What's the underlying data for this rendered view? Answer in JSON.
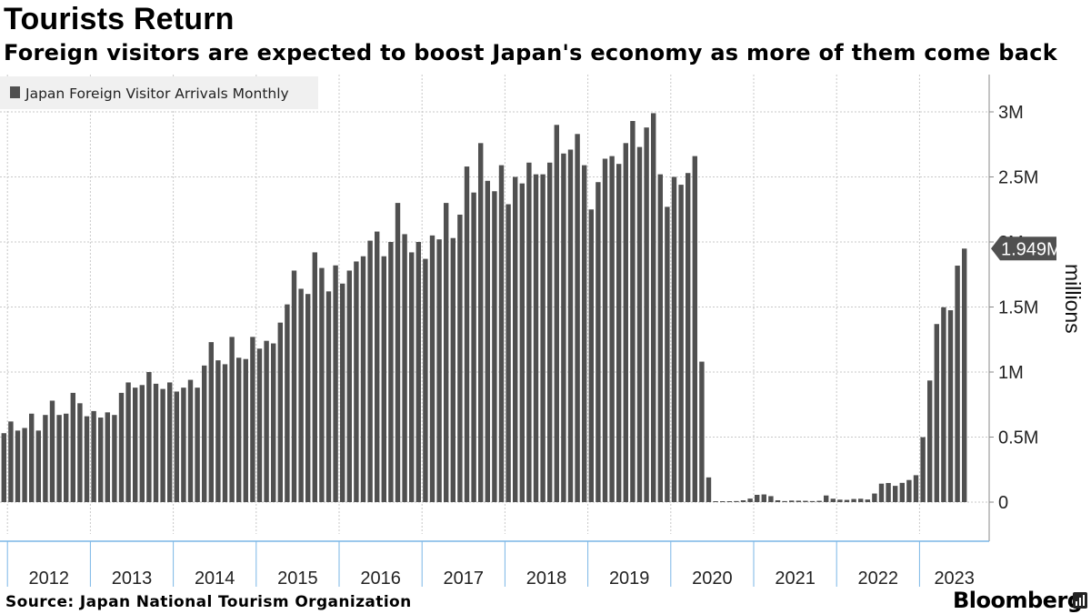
{
  "title": "Tourists Return",
  "subtitle": "Foreign visitors are expected to boost Japan's economy as more of them come back",
  "source": "Source: Japan National Tourism Organization",
  "brand": "Bloomberg",
  "brand_icon": "bloomberg-terminal-icon",
  "colors": {
    "bar": "#505050",
    "grid": "#c8c8c8",
    "axis_x": "#7ab6e6",
    "label_bg": "#505050",
    "legend_bg": "#f0f0f0"
  },
  "chart_data": {
    "type": "bar",
    "title": "Tourists Return",
    "series": [
      {
        "name": "Japan Foreign Visitor Arrivals Monthly",
        "unit": "millions"
      }
    ],
    "ylabel": "millions",
    "ylim": [
      -0.28,
      3.3
    ],
    "yticks": [
      {
        "value": 0,
        "label": "0"
      },
      {
        "value": 0.5,
        "label": "0.5M"
      },
      {
        "value": 1,
        "label": "1M"
      },
      {
        "value": 1.5,
        "label": "1.5M"
      },
      {
        "value": 2,
        "label": "2M"
      },
      {
        "value": 2.5,
        "label": "2.5M"
      },
      {
        "value": 3,
        "label": "3M"
      }
    ],
    "years": [
      "2012",
      "2013",
      "2014",
      "2015",
      "2016",
      "2017",
      "2018",
      "2019",
      "2020",
      "2021",
      "2022",
      "2023"
    ],
    "start": "2011-12",
    "values": [
      0.53,
      0.62,
      0.55,
      0.57,
      0.68,
      0.55,
      0.67,
      0.78,
      0.67,
      0.68,
      0.84,
      0.76,
      0.66,
      0.7,
      0.65,
      0.69,
      0.67,
      0.84,
      0.92,
      0.88,
      0.9,
      1.0,
      0.91,
      0.87,
      0.92,
      0.85,
      0.88,
      0.94,
      0.88,
      1.05,
      1.23,
      1.09,
      1.06,
      1.27,
      1.11,
      1.1,
      1.27,
      1.18,
      1.24,
      1.22,
      1.38,
      1.52,
      1.78,
      1.64,
      1.6,
      1.92,
      1.8,
      1.62,
      1.82,
      1.68,
      1.78,
      1.85,
      1.89,
      2.01,
      2.08,
      1.89,
      2.0,
      2.3,
      2.06,
      1.92,
      2.0,
      1.87,
      2.05,
      2.02,
      2.3,
      2.03,
      2.21,
      2.58,
      2.38,
      2.76,
      2.47,
      2.39,
      2.59,
      2.29,
      2.5,
      2.45,
      2.61,
      2.52,
      2.52,
      2.61,
      2.9,
      2.68,
      2.71,
      2.83,
      2.59,
      2.25,
      2.46,
      2.64,
      2.66,
      2.6,
      2.76,
      2.93,
      2.73,
      2.88,
      2.99,
      2.52,
      2.27,
      2.5,
      2.44,
      2.53,
      2.66,
      1.08,
      0.19,
      0.003,
      0.002,
      0.004,
      0.008,
      0.014,
      0.027,
      0.056,
      0.059,
      0.046,
      0.014,
      0.008,
      0.012,
      0.011,
      0.01,
      0.008,
      0.01,
      0.051,
      0.026,
      0.019,
      0.017,
      0.024,
      0.026,
      0.02,
      0.066,
      0.142,
      0.147,
      0.125,
      0.148,
      0.17,
      0.207,
      0.499,
      0.935,
      1.369,
      1.498,
      1.475,
      1.818,
      1.949
    ],
    "last_value_label": "1.949M",
    "legend": {
      "label": "Japan Foreign Visitor Arrivals Monthly",
      "position": "top-left"
    }
  }
}
